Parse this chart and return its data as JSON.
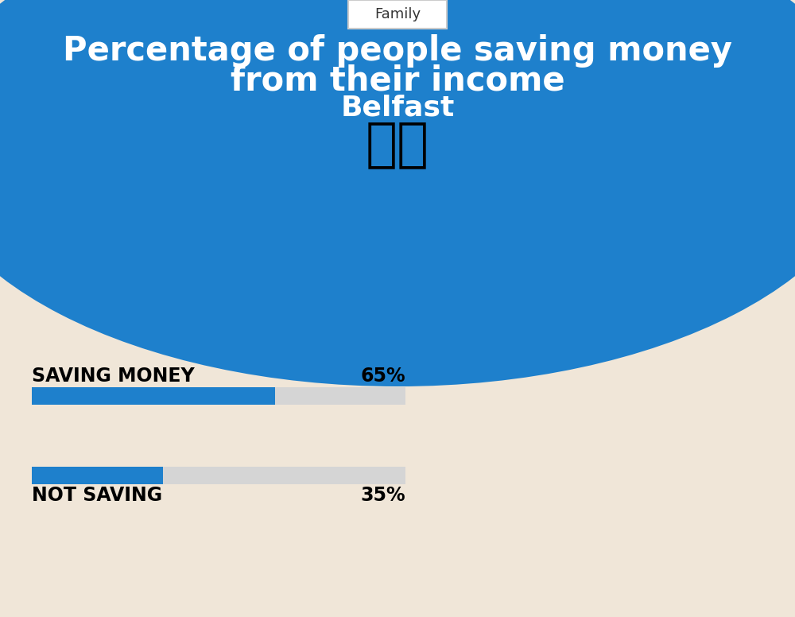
{
  "bg_color": "#f0e6d8",
  "blue_color": "#1e80cc",
  "bar_blue": "#1e80cc",
  "bar_gray": "#d5d5d5",
  "title_line1": "Percentage of people saving money",
  "title_line2": "from their income",
  "subtitle": "Belfast",
  "tag": "Family",
  "saving_label": "SAVING MONEY",
  "saving_value": 65,
  "saving_pct_text": "65%",
  "not_saving_label": "NOT SAVING",
  "not_saving_value": 35,
  "not_saving_pct_text": "35%",
  "label_fontsize": 17,
  "pct_fontsize": 17,
  "title_fontsize": 30,
  "subtitle_fontsize": 26,
  "tag_fontsize": 13
}
